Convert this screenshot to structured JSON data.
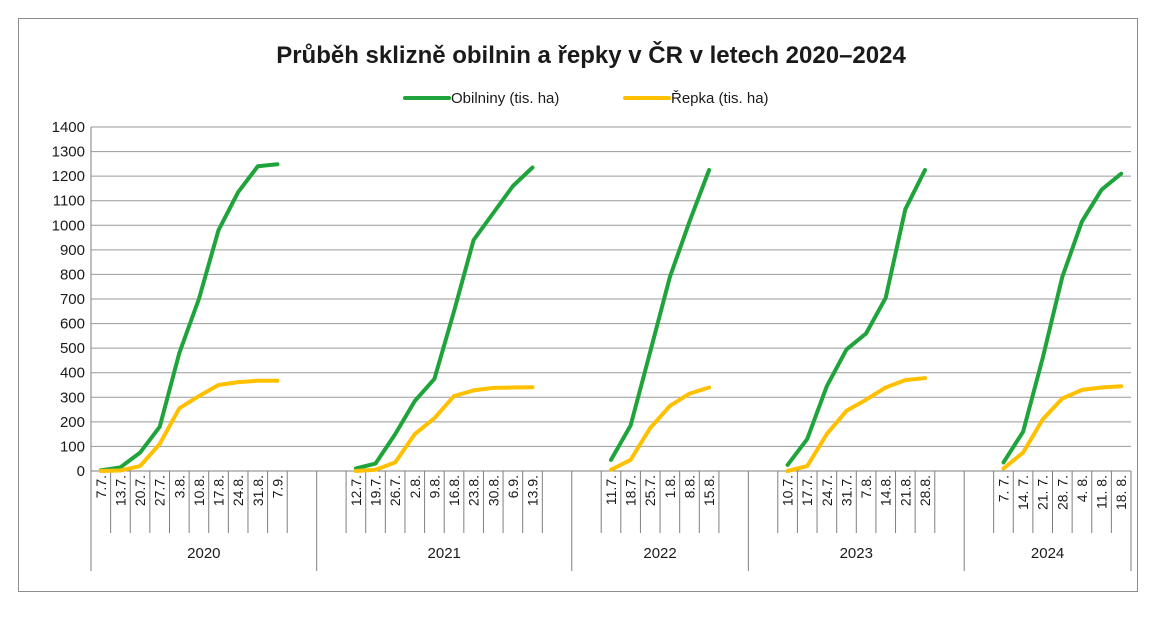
{
  "chart_data": {
    "type": "line",
    "title": "Průběh sklizně obilnin a řepky v ČR v letech 2020–2024",
    "ylim": [
      0,
      1400
    ],
    "y_ticks": [
      0,
      100,
      200,
      300,
      400,
      500,
      600,
      700,
      800,
      900,
      1000,
      1100,
      1200,
      1300,
      1400
    ],
    "grid": true,
    "legend_position": "top",
    "groups": [
      {
        "label": "2020",
        "categories": [
          "7.7.",
          "13.7.",
          "20.7.",
          "27.7.",
          "3.8.",
          "10.8.",
          "17.8.",
          "24.8.",
          "31.8.",
          "7.9."
        ]
      },
      {
        "label": "2021",
        "categories": [
          "12.7.",
          "19.7.",
          "26.7.",
          "2.8.",
          "9.8.",
          "16.8.",
          "23.8.",
          "30.8.",
          "6.9.",
          "13.9."
        ]
      },
      {
        "label": "2022",
        "categories": [
          "11.7.",
          "18.7.",
          "25.7.",
          "1.8.",
          "8.8.",
          "15.8."
        ]
      },
      {
        "label": "2023",
        "categories": [
          "10.7.",
          "17.7.",
          "24.7.",
          "31.7.",
          "7.8.",
          "14.8.",
          "21.8.",
          "28.8."
        ]
      },
      {
        "label": "2024",
        "categories": [
          "7. 7.",
          "14. 7.",
          "21. 7.",
          "28. 7.",
          "4. 8.",
          "11. 8.",
          "18. 8."
        ]
      }
    ],
    "series": [
      {
        "name": "Obilniny (tis. ha)",
        "color": "#1fa43c",
        "values": [
          [
            3,
            15,
            75,
            180,
            480,
            700,
            980,
            1135,
            1240,
            1248
          ],
          [
            10,
            30,
            150,
            285,
            375,
            650,
            940,
            1050,
            1160,
            1235
          ],
          [
            45,
            185,
            485,
            790,
            1015,
            1225
          ],
          [
            25,
            130,
            345,
            495,
            560,
            705,
            1065,
            1225
          ],
          [
            35,
            160,
            460,
            790,
            1015,
            1145,
            1210
          ]
        ]
      },
      {
        "name": "Řepka (tis. ha)",
        "color": "#ffc000",
        "values": [
          [
            0,
            2,
            20,
            110,
            255,
            305,
            350,
            362,
            367,
            367
          ],
          [
            0,
            5,
            35,
            150,
            215,
            305,
            328,
            338,
            340,
            341
          ],
          [
            5,
            45,
            175,
            265,
            315,
            340
          ],
          [
            0,
            20,
            150,
            245,
            290,
            340,
            370,
            378
          ],
          [
            10,
            75,
            210,
            295,
            330,
            340,
            345
          ]
        ]
      }
    ]
  }
}
